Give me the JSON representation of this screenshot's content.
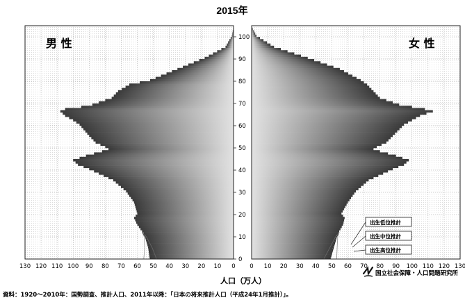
{
  "chart_data": {
    "type": "bar",
    "orientation": "horizontal",
    "title": "2015年",
    "xlabel": "人口（万人）",
    "x_ticks_left": [
      "130",
      "120",
      "110",
      "100",
      "90",
      "80",
      "70",
      "60",
      "50",
      "40",
      "30",
      "20",
      "10",
      "0"
    ],
    "x_ticks_right": [
      "0",
      "10",
      "20",
      "30",
      "40",
      "50",
      "60",
      "70",
      "80",
      "90",
      "100",
      "110",
      "120",
      "130"
    ],
    "age_ticks": [
      "0",
      "10",
      "20",
      "30",
      "40",
      "50",
      "60",
      "70",
      "80",
      "90",
      "100"
    ],
    "xlim": [
      0,
      130
    ],
    "ylim": [
      0,
      105
    ],
    "grid": true,
    "panels": [
      {
        "name": "男 性",
        "side": "left"
      },
      {
        "name": "女 性",
        "side": "right"
      }
    ],
    "age_knots": [
      0,
      5,
      10,
      15,
      18,
      20,
      25,
      30,
      35,
      38,
      40,
      42,
      44,
      46,
      48,
      49,
      50,
      52,
      55,
      60,
      62,
      64,
      66,
      67,
      68,
      69,
      70,
      72,
      75,
      78,
      80,
      85,
      90,
      95,
      100,
      104
    ],
    "series": [
      {
        "name": "男 性",
        "values": [
          52,
          53,
          55,
          60,
          62,
          60,
          62,
          67,
          75,
          84,
          90,
          97,
          100,
          92,
          82,
          78,
          80,
          86,
          90,
          96,
          100,
          105,
          108,
          105,
          95,
          88,
          84,
          76,
          72,
          65,
          52,
          35,
          18,
          5,
          1,
          0
        ]
      },
      {
        "name": "女 性",
        "values": [
          49,
          51,
          53,
          57,
          58,
          56,
          60,
          65,
          73,
          82,
          88,
          95,
          98,
          90,
          80,
          76,
          78,
          84,
          88,
          95,
          100,
          105,
          113,
          108,
          100,
          92,
          88,
          80,
          76,
          72,
          68,
          55,
          35,
          14,
          3,
          0
        ]
      }
    ],
    "legend": {
      "placement": "bottom-right of female panel",
      "entries": [
        "出生低位推計",
        "出生中位推計",
        "出生高位推計"
      ]
    }
  },
  "source_note": "資料：1920～2010年：国勢調査、推計人口、2011年以降：「日本の将来推計人口（平成24年1月推計）」。",
  "org_name": "国立社会保障・人口問題研究所",
  "org_logo": "ipss-logo",
  "colors": {
    "bar_dark": "#3a3a3a",
    "bar_light": "#d4d4d4",
    "grid": "#9a9a9a",
    "frame": "#222222"
  }
}
